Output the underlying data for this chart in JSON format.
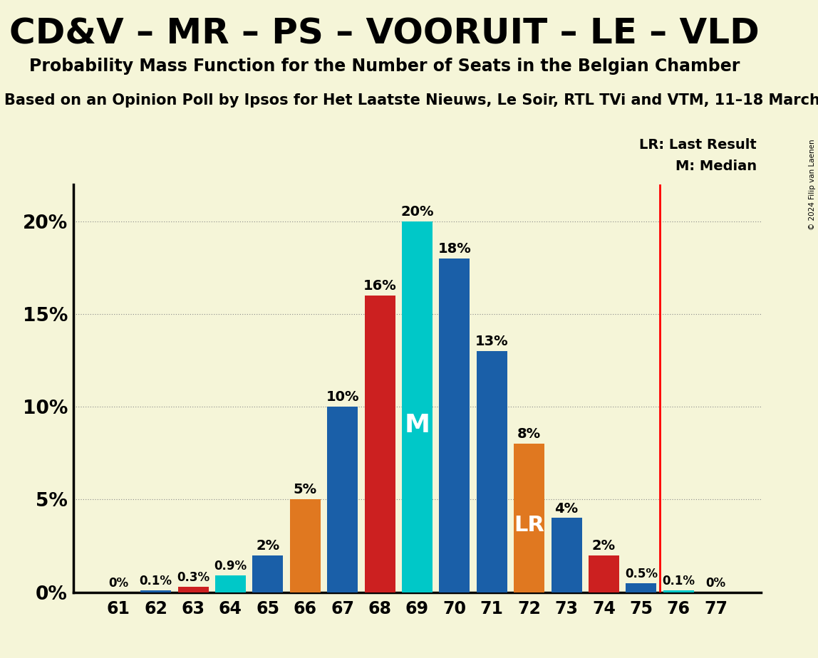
{
  "title": "CD&V – MR – PS – VOORUIT – LE – VLD",
  "subtitle": "Probability Mass Function for the Number of Seats in the Belgian Chamber",
  "subtitle2": "on an Opinion Poll by Ipsos for Het Laatste Nieuws, Le Soir, RTL TVi and VTM, 11–18 March",
  "subtitle2_prefix": "Based ",
  "copyright": "© 2024 Filip van Laenen",
  "seats": [
    61,
    62,
    63,
    64,
    65,
    66,
    67,
    68,
    69,
    70,
    71,
    72,
    73,
    74,
    75,
    76,
    77
  ],
  "probabilities": [
    0.0,
    0.1,
    0.3,
    0.9,
    2.0,
    5.0,
    10.0,
    16.0,
    20.0,
    18.0,
    13.0,
    8.0,
    4.0,
    2.0,
    0.5,
    0.1,
    0.0
  ],
  "bar_colors": [
    "#1a5fa8",
    "#1a5fa8",
    "#cc2020",
    "#00c8c8",
    "#1a5fa8",
    "#e07820",
    "#1a5fa8",
    "#cc2020",
    "#00c8c8",
    "#1a5fa8",
    "#1a5fa8",
    "#e07820",
    "#1a5fa8",
    "#cc2020",
    "#1a5fa8",
    "#00c8c8",
    "#1a5fa8"
  ],
  "median_seat": 69,
  "lr_seat": 72,
  "lr_line_seat": 75,
  "background_color": "#f5f5d8",
  "ylabel_ticks": [
    "0%",
    "5%",
    "10%",
    "15%",
    "20%"
  ],
  "ytick_values": [
    0,
    5,
    10,
    15,
    20
  ],
  "ylim": [
    0,
    22
  ],
  "bar_width": 0.82
}
